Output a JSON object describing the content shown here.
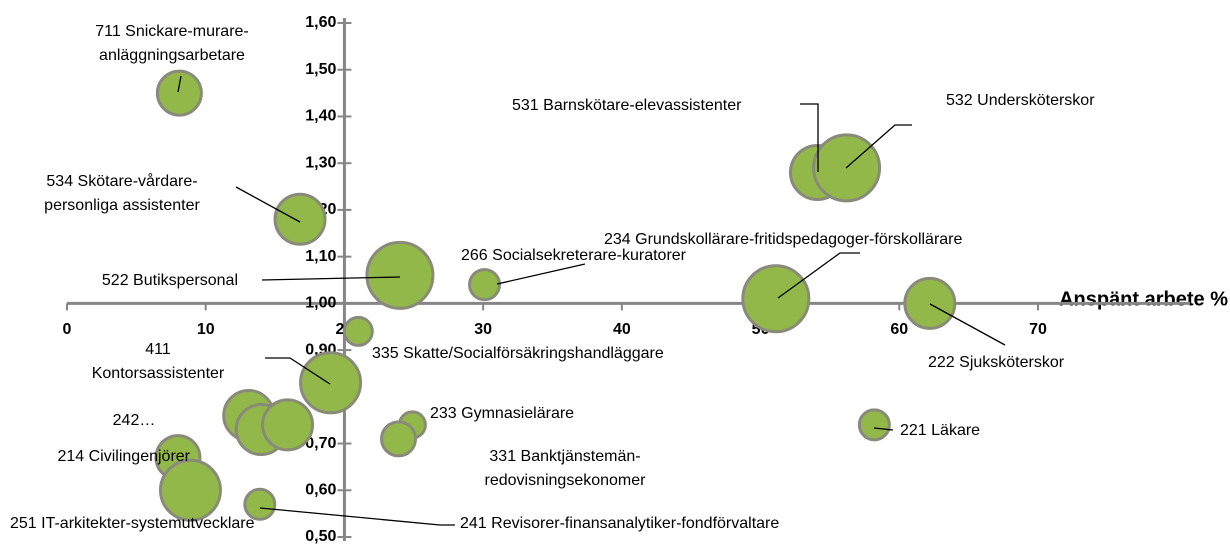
{
  "chart_data": {
    "type": "bubble",
    "x_label": "Anspänt arbete %",
    "x": [
      8.1,
      16.8,
      24.0,
      30.1,
      54.1,
      56.2,
      51.1,
      62.2,
      21.0,
      19.0,
      24.9,
      23.9,
      58.2,
      13.1,
      14.0,
      15.9,
      8.0,
      8.9,
      13.9
    ],
    "values": [
      1.45,
      1.18,
      1.06,
      1.04,
      1.28,
      1.29,
      1.01,
      1.0,
      0.94,
      0.83,
      0.74,
      0.71,
      0.74,
      0.76,
      0.73,
      0.74,
      0.67,
      0.6,
      0.57
    ],
    "sizes": [
      22,
      25,
      33,
      15,
      27,
      33,
      33,
      25,
      14,
      30,
      13,
      17,
      15,
      25,
      25,
      25,
      22,
      30,
      15
    ],
    "labels": [
      [
        "711 Snickare-murare-",
        "anläggningsarbetare"
      ],
      [
        "534 Skötare-vårdare-",
        "personliga assistenter"
      ],
      [
        "522 Butikspersonal"
      ],
      [
        "266 Socialsekreterare-kuratorer"
      ],
      [
        "531 Barnskötare-elevassistenter"
      ],
      [
        "532 Undersköterskor"
      ],
      [
        "234 Grundskollärare-fritidspedagoger-förskollärare"
      ],
      [
        "222 Sjuksköterskor"
      ],
      [
        "335 Skatte/Socialförsäkringshandläggare"
      ],
      [
        "411",
        "Kontorsassistenter"
      ],
      [
        "233 Gymnasielärare"
      ],
      [
        "331 Banktjänstemän-",
        "redovisningsekonomer"
      ],
      [
        "221 Läkare"
      ],
      [
        "242…"
      ],
      null,
      null,
      [
        "214 Civilingenjörer"
      ],
      [
        "251 IT-arkitekter-systemutvecklare"
      ],
      [
        "241 Revisorer-finansanalytiker-fondförvaltare"
      ]
    ],
    "color": "#92b84a",
    "xlim": [
      0,
      70
    ],
    "xticks": [
      0,
      10,
      20,
      30,
      40,
      50,
      60,
      70
    ],
    "ylim": [
      0.5,
      1.6
    ],
    "yticks": [
      {
        "value": 0.5,
        "label": "0,50"
      },
      {
        "value": 0.6,
        "label": "0,60"
      },
      {
        "value": 0.7,
        "label": "0,70"
      },
      {
        "value": 0.8,
        "label": "0,80"
      },
      {
        "value": 0.9,
        "label": "0,90"
      },
      {
        "value": 1.0,
        "label": "1,00"
      },
      {
        "value": 1.1,
        "label": "1,10"
      },
      {
        "value": 1.2,
        "label": "1,20"
      },
      {
        "value": 1.3,
        "label": "1,30"
      },
      {
        "value": 1.4,
        "label": "1,40"
      },
      {
        "value": 1.5,
        "label": "1,50"
      },
      {
        "value": 1.6,
        "label": "1,60"
      }
    ]
  }
}
